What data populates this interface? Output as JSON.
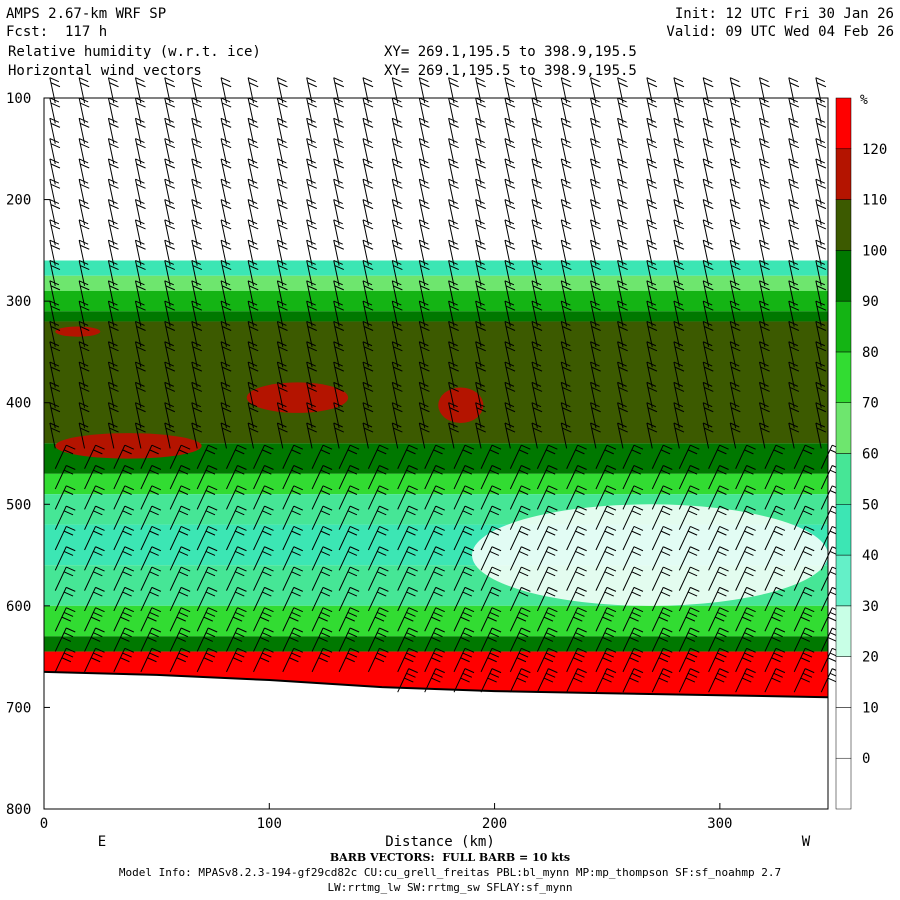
{
  "header": {
    "model": "AMPS 2.67-km WRF SP",
    "fcst": "Fcst:  117 h",
    "field1": "Relative humidity (w.r.t. ice)",
    "field2": "Horizontal wind vectors",
    "init": "Init: 12 UTC Fri 30 Jan 26",
    "valid": "Valid: 09 UTC Wed 04 Feb 26",
    "xy1": "XY= 269.1,195.5 to 398.9,195.5",
    "xy2": "XY= 269.1,195.5 to 398.9,195.5"
  },
  "footer": {
    "barb": "BARB VECTORS:  FULL BARB = 10 kts",
    "model_info": "Model Info: MPASv8.2.3-194-gf29cd82c CU:cu_grell_freitas PBL:bl_mynn MP:mp_thompson SF:sf_noahmp 2.7",
    "model_info2": "LW:rrtmg_lw SW:rrtmg_sw SFLAY:sf_mynn"
  },
  "chart_data": {
    "type": "heatmap",
    "xlabel": "Distance (km)",
    "x_ticks": [
      0,
      100,
      200,
      300
    ],
    "xlim": [
      0,
      348
    ],
    "x_end_labels": [
      "E",
      "W"
    ],
    "y_ticks": [
      100,
      200,
      300,
      400,
      500,
      600,
      700,
      800
    ],
    "ylim": [
      800,
      100
    ],
    "colorbar": {
      "unit": "%",
      "levels": [
        0,
        10,
        20,
        30,
        40,
        50,
        60,
        70,
        80,
        90,
        100,
        110,
        120
      ],
      "colors": [
        "#ffffff",
        "#ffffff",
        "#ffffff",
        "#c8ffe6",
        "#64f0c8",
        "#3ce6b4",
        "#46e696",
        "#6ee66e",
        "#32dc32",
        "#14b414",
        "#007800",
        "#3c5a00",
        "#b41400",
        "#ff0000"
      ]
    },
    "rh_profile": [
      {
        "p_top": 100,
        "p_bot": 260,
        "rh": 5
      },
      {
        "p_top": 260,
        "p_bot": 275,
        "rh": 45
      },
      {
        "p_top": 275,
        "p_bot": 290,
        "rh": 65
      },
      {
        "p_top": 290,
        "p_bot": 310,
        "rh": 85
      },
      {
        "p_top": 310,
        "p_bot": 320,
        "rh": 95
      },
      {
        "p_top": 320,
        "p_bot": 440,
        "rh": 105
      },
      {
        "p_top": 440,
        "p_bot": 470,
        "rh": 95
      },
      {
        "p_top": 470,
        "p_bot": 490,
        "rh": 75
      },
      {
        "p_top": 490,
        "p_bot": 520,
        "rh": 55
      },
      {
        "p_top": 520,
        "p_bot": 560,
        "rh": 45
      },
      {
        "p_top": 560,
        "p_bot": 600,
        "rh": 55
      },
      {
        "p_top": 600,
        "p_bot": 630,
        "rh": 75
      },
      {
        "p_top": 630,
        "p_bot": 645,
        "rh": 95
      },
      {
        "p_top": 645,
        "p_bot": 700,
        "rh": 125
      }
    ],
    "red_patches": [
      {
        "x0": 5,
        "x1": 25,
        "p_top": 325,
        "p_bot": 335
      },
      {
        "x0": 5,
        "x1": 70,
        "p_top": 430,
        "p_bot": 455
      },
      {
        "x0": 90,
        "x1": 135,
        "p_top": 380,
        "p_bot": 410
      },
      {
        "x0": 175,
        "x1": 195,
        "p_top": 385,
        "p_bot": 420
      }
    ],
    "dry_patches": [
      {
        "x0": 190,
        "x1": 348,
        "p_top": 500,
        "p_bot": 600
      }
    ],
    "terrain_surface": [
      {
        "x": 0,
        "p": 665
      },
      {
        "x": 50,
        "p": 668
      },
      {
        "x": 100,
        "p": 673
      },
      {
        "x": 150,
        "p": 680
      },
      {
        "x": 200,
        "p": 684
      },
      {
        "x": 250,
        "p": 686
      },
      {
        "x": 300,
        "p": 688
      },
      {
        "x": 348,
        "p": 690
      }
    ],
    "barb_columns_x": [
      5,
      18,
      31,
      43,
      56,
      68,
      81,
      93,
      106,
      119,
      131,
      144,
      157,
      169,
      182,
      194,
      207,
      219,
      232,
      245,
      257,
      270,
      282,
      295,
      307,
      320,
      333,
      345
    ],
    "barb_levels_p": [
      105,
      125,
      145,
      165,
      185,
      205,
      225,
      245,
      265,
      285,
      305,
      325,
      345,
      365,
      385,
      405,
      425,
      445,
      465,
      485,
      505,
      525,
      545,
      565,
      585,
      605,
      625,
      645,
      665,
      685
    ]
  }
}
